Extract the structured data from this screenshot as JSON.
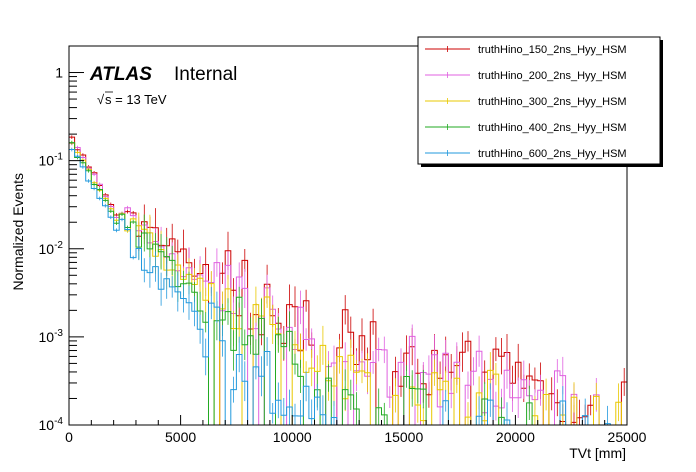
{
  "chart_data": {
    "type": "line",
    "title": "",
    "xlabel": "TVt [mm]",
    "ylabel": "Normalized Events",
    "xlim": [
      0,
      25000
    ],
    "ylim": [
      0.0001,
      2
    ],
    "yscale": "log",
    "x_ticks": [
      0,
      5000,
      10000,
      15000,
      20000,
      25000
    ],
    "x_tick_labels": [
      "0",
      "5000",
      "10000",
      "15000",
      "20000",
      "25000"
    ],
    "y_ticks": [
      {
        "base": "10",
        "exp": "-4",
        "value": 0.0001
      },
      {
        "base": "10",
        "exp": "-3",
        "value": 0.001
      },
      {
        "base": "10",
        "exp": "-2",
        "value": 0.01
      },
      {
        "base": "10",
        "exp": "-1",
        "value": 0.1
      },
      {
        "base": "1",
        "exp": "",
        "value": 1
      }
    ],
    "annotations": {
      "experiment": "ATLAS",
      "status": "Internal",
      "sqrt": "√",
      "energy": "s = 13 TeV"
    },
    "legend_position": "top-right",
    "series": [
      {
        "name": "truthHino_150_2ns_Hyy_HSM",
        "color": "#cc0000",
        "x": [
          0,
          2000,
          4000,
          6000,
          8000,
          10000,
          12000,
          14000,
          16000,
          18000,
          20000,
          22000,
          24000
        ],
        "values": [
          0.2,
          0.03,
          0.013,
          0.0055,
          0.003,
          0.0017,
          0.0009,
          0.0006,
          0.00045,
          0.00035,
          0.0003,
          0.00025,
          0.0002
        ]
      },
      {
        "name": "truthHino_200_2ns_Hyy_HSM",
        "color": "#e060e0",
        "x": [
          0,
          2000,
          4000,
          6000,
          8000,
          10000,
          12000,
          14000,
          16000,
          18000,
          20000,
          22000,
          24000
        ],
        "values": [
          0.19,
          0.028,
          0.011,
          0.0045,
          0.0025,
          0.0014,
          0.0008,
          0.0005,
          0.0004,
          0.0003,
          0.00025,
          0.0002,
          0.00015
        ]
      },
      {
        "name": "truthHino_300_2ns_Hyy_HSM",
        "color": "#e8c800",
        "x": [
          0,
          2000,
          4000,
          6000,
          8000,
          10000,
          12000,
          14000,
          16000,
          18000,
          20000
        ],
        "values": [
          0.18,
          0.026,
          0.009,
          0.0035,
          0.0015,
          0.0008,
          0.00045,
          0.0003,
          0.00022,
          0.00018,
          0.00015
        ]
      },
      {
        "name": "truthHino_400_2ns_Hyy_HSM",
        "color": "#22aa22",
        "x": [
          0,
          2000,
          4000,
          6000,
          8000,
          10000,
          12000,
          14000,
          16000
        ],
        "values": [
          0.17,
          0.024,
          0.0075,
          0.0025,
          0.001,
          0.0005,
          0.00025,
          0.00018,
          0.00013
        ]
      },
      {
        "name": "truthHino_600_2ns_Hyy_HSM",
        "color": "#2299dd",
        "x": [
          0,
          2000,
          4000,
          6000,
          8000,
          10000,
          12000
        ],
        "values": [
          0.16,
          0.02,
          0.005,
          0.0013,
          0.0004,
          0.00018,
          0.00012
        ]
      }
    ]
  }
}
